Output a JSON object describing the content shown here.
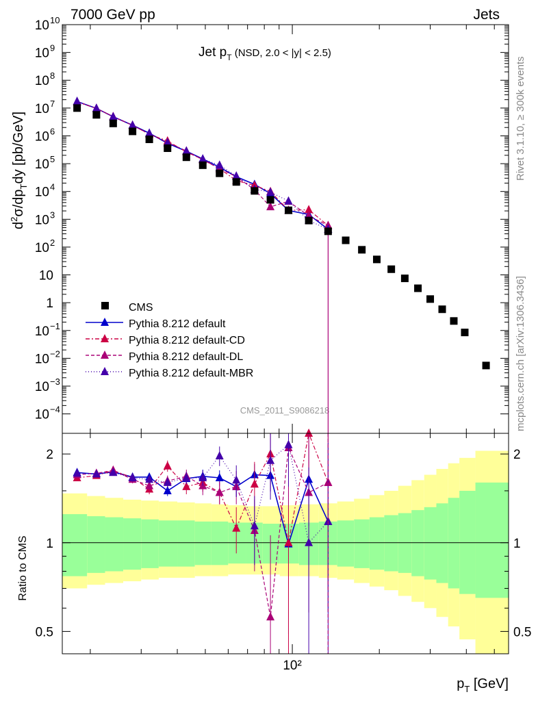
{
  "header": {
    "left": "7000 GeV pp",
    "right": "Jets"
  },
  "side": {
    "rivet": "Rivet 3.1.10, ≥ 300k events",
    "mcplots": "mcplots.cern.ch [arXiv:1306.3436]"
  },
  "watermark": "CMS_2011_S9086218",
  "chart_data": {
    "type": "scatter",
    "title": "Jet p_T (NSD, 2.0 < |y| < 2.5)",
    "title_main": "Jet p",
    "title_sub": "T",
    "title_tail": "(NSD, 2.0 < |y| < 2.5)",
    "xlabel": "p_T [GeV]",
    "xlabel_main": "p",
    "xlabel_sub": "T",
    "xlabel_tail": "[GeV]",
    "ylabel": "d²σ/dp_T dy [pb/GeV]",
    "ratio_ylabel": "Ratio to CMS",
    "x_scale": "log",
    "y_scale": "log",
    "xlim": [
      16,
      560
    ],
    "ylim": [
      2e-05,
      10000000000
    ],
    "ratio_ylim": [
      0.42,
      2.35
    ],
    "x_tick_label": "10²",
    "y_ticks": [
      {
        "v": 10000000000,
        "t": "10",
        "e": "10"
      },
      {
        "v": 1000000000,
        "t": "10",
        "e": "9"
      },
      {
        "v": 100000000,
        "t": "10",
        "e": "8"
      },
      {
        "v": 10000000,
        "t": "10",
        "e": "7"
      },
      {
        "v": 1000000,
        "t": "10",
        "e": "6"
      },
      {
        "v": 100000,
        "t": "10",
        "e": "5"
      },
      {
        "v": 10000,
        "t": "10",
        "e": "4"
      },
      {
        "v": 1000,
        "t": "10",
        "e": "3"
      },
      {
        "v": 100,
        "t": "10",
        "e": "2"
      },
      {
        "v": 10,
        "t": "10",
        "e": ""
      },
      {
        "v": 1,
        "t": "1",
        "e": ""
      },
      {
        "v": 0.1,
        "t": "10",
        "e": "−1"
      },
      {
        "v": 0.01,
        "t": "10",
        "e": "−2"
      },
      {
        "v": 0.001,
        "t": "10",
        "e": "−3"
      },
      {
        "v": 0.0001,
        "t": "10",
        "e": "−4"
      }
    ],
    "ratio_ticks": [
      {
        "v": 0.5,
        "t": "0.5"
      },
      {
        "v": 1,
        "t": "1"
      },
      {
        "v": 2,
        "t": "2"
      }
    ],
    "legend_position": "lower-left",
    "cms": {
      "name": "CMS",
      "x": [
        18,
        21,
        24,
        28,
        32,
        37,
        43,
        49,
        56,
        64,
        74,
        84,
        97,
        114,
        133,
        153,
        174,
        196,
        220,
        245,
        272,
        300,
        330,
        362,
        395,
        468
      ],
      "y": [
        10000000,
        5700000,
        2800000,
        1450000,
        750000,
        360000,
        170000,
        88000,
        45000,
        22000,
        10500,
        5000,
        2100,
        900,
        370,
        175,
        80,
        36,
        16,
        7.5,
        3.3,
        1.35,
        0.58,
        0.22,
        0.085,
        0.0055
      ]
    },
    "band": {
      "x_edges": [
        16,
        19.5,
        22.5,
        26,
        30,
        34.5,
        40,
        46,
        52.5,
        60,
        69,
        79,
        90.5,
        105.5,
        123.5,
        143,
        163.5,
        185,
        208,
        232.5,
        258.5,
        286,
        315,
        346,
        378.5,
        430,
        560
      ],
      "inner": [
        [
          0.77,
          1.25
        ],
        [
          0.79,
          1.23
        ],
        [
          0.8,
          1.22
        ],
        [
          0.81,
          1.21
        ],
        [
          0.82,
          1.2
        ],
        [
          0.83,
          1.19
        ],
        [
          0.83,
          1.19
        ],
        [
          0.84,
          1.18
        ],
        [
          0.84,
          1.18
        ],
        [
          0.85,
          1.17
        ],
        [
          0.85,
          1.17
        ],
        [
          0.85,
          1.16
        ],
        [
          0.85,
          1.16
        ],
        [
          0.84,
          1.17
        ],
        [
          0.84,
          1.18
        ],
        [
          0.83,
          1.19
        ],
        [
          0.82,
          1.2
        ],
        [
          0.81,
          1.22
        ],
        [
          0.8,
          1.24
        ],
        [
          0.79,
          1.26
        ],
        [
          0.77,
          1.29
        ],
        [
          0.75,
          1.32
        ],
        [
          0.73,
          1.36
        ],
        [
          0.7,
          1.42
        ],
        [
          0.67,
          1.5
        ],
        [
          0.65,
          1.6
        ]
      ],
      "outer": [
        [
          0.7,
          1.47
        ],
        [
          0.72,
          1.44
        ],
        [
          0.73,
          1.42
        ],
        [
          0.74,
          1.4
        ],
        [
          0.75,
          1.39
        ],
        [
          0.76,
          1.38
        ],
        [
          0.76,
          1.37
        ],
        [
          0.77,
          1.36
        ],
        [
          0.77,
          1.35
        ],
        [
          0.78,
          1.34
        ],
        [
          0.78,
          1.33
        ],
        [
          0.78,
          1.33
        ],
        [
          0.77,
          1.34
        ],
        [
          0.77,
          1.35
        ],
        [
          0.76,
          1.36
        ],
        [
          0.75,
          1.38
        ],
        [
          0.73,
          1.41
        ],
        [
          0.71,
          1.45
        ],
        [
          0.69,
          1.5
        ],
        [
          0.66,
          1.56
        ],
        [
          0.63,
          1.63
        ],
        [
          0.6,
          1.7
        ],
        [
          0.56,
          1.78
        ],
        [
          0.52,
          1.86
        ],
        [
          0.47,
          1.94
        ],
        [
          0.42,
          2.05
        ]
      ]
    },
    "series": [
      {
        "name": "Pythia 8.212 default",
        "color": "#0000cc",
        "dash": "",
        "x": [
          18,
          21,
          24,
          28,
          32,
          37,
          43,
          49,
          56,
          64,
          74,
          84,
          97,
          114,
          133
        ],
        "ratio": [
          1.73,
          1.71,
          1.74,
          1.67,
          1.67,
          1.5,
          1.65,
          1.68,
          1.66,
          1.55,
          1.7,
          1.69,
          0.99,
          1.64,
          1.18
        ],
        "ratio_err": [
          0.03,
          0.03,
          0.04,
          0.04,
          0.05,
          0.06,
          0.08,
          0.09,
          0.1,
          0.12,
          0.15,
          0.2,
          0.5,
          0.5,
          0.6
        ],
        "y": [
          17300000,
          9750000,
          4870000,
          2420000,
          1250000,
          540000,
          280000,
          148000,
          74700,
          34100,
          17900,
          8450,
          2080,
          1480,
          437
        ]
      },
      {
        "name": "Pythia 8.212 default-CD",
        "color": "#cc0044",
        "dash": "6,3,2,3",
        "x": [
          18,
          21,
          24,
          28,
          32,
          37,
          43,
          49,
          56,
          64,
          74,
          84,
          97,
          114,
          133
        ],
        "ratio": [
          1.66,
          1.69,
          1.76,
          1.66,
          1.52,
          1.82,
          1.55,
          1.6,
          1.48,
          1.12,
          1.58,
          2.0,
          1.0,
          2.45,
          1.6
        ],
        "ratio_err": [
          0.04,
          0.04,
          0.05,
          0.05,
          0.06,
          0.08,
          0.09,
          0.11,
          0.13,
          0.2,
          0.3,
          0.5,
          0.6,
          0.7,
          0.9
        ],
        "y": [
          16600000,
          9630000,
          4930000,
          2410000,
          1140000,
          655000,
          264000,
          141000,
          66600,
          24600,
          16600,
          10000,
          2100,
          2200,
          592
        ]
      },
      {
        "name": "Pythia 8.212 default-DL",
        "color": "#aa0077",
        "dash": "5,3",
        "x": [
          18,
          21,
          24,
          28,
          32,
          37,
          43,
          49,
          56,
          64,
          74,
          84,
          97,
          114,
          133
        ],
        "ratio": [
          1.7,
          1.72,
          1.76,
          1.64,
          1.56,
          1.62,
          1.68,
          1.56,
          1.48,
          1.55,
          1.1,
          0.56,
          2.1,
          1.48,
          1.6
        ],
        "ratio_err": [
          0.04,
          0.04,
          0.05,
          0.05,
          0.06,
          0.07,
          0.09,
          0.11,
          0.13,
          0.2,
          0.3,
          0.5,
          0.8,
          0.9,
          1.0
        ],
        "y": [
          17000000,
          9800000,
          4930000,
          2380000,
          1170000,
          583000,
          286000,
          137000,
          66600,
          34100,
          11600,
          2800,
          4410,
          1330,
          592
        ]
      },
      {
        "name": "Pythia 8.212 default-MBR",
        "color": "#4400aa",
        "dash": "1,3",
        "x": [
          18,
          21,
          24,
          28,
          32,
          37,
          43,
          49,
          56,
          64,
          74,
          84,
          97,
          114,
          133
        ],
        "ratio": [
          1.72,
          1.71,
          1.73,
          1.66,
          1.64,
          1.6,
          1.66,
          1.66,
          1.97,
          1.63,
          1.14,
          1.9,
          2.15,
          1.0,
          1.18
        ],
        "ratio_err": [
          0.04,
          0.04,
          0.04,
          0.05,
          0.05,
          0.06,
          0.08,
          0.1,
          0.15,
          0.2,
          0.3,
          0.5,
          0.6,
          0.8,
          1.0
        ],
        "y": [
          17200000,
          9750000,
          4840000,
          2410000,
          1230000,
          576000,
          282000,
          146000,
          88700,
          35900,
          12000,
          9500,
          4520,
          900,
          437
        ]
      }
    ]
  }
}
